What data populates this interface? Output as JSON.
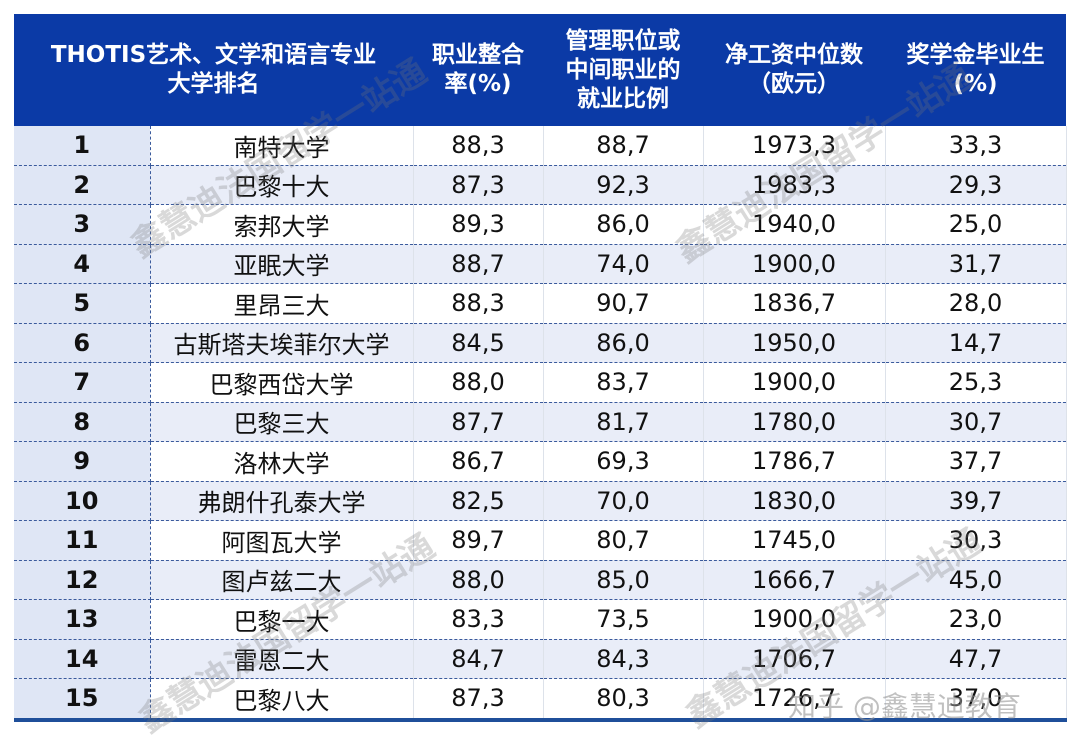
{
  "table": {
    "headers": [
      "THOTIS艺术、文学和语言专业\n大学排名",
      "职业整合\n率(%)",
      "管理职位或\n中间职业的\n就业比例",
      "净工资中位数\n（欧元）",
      "奖学金毕业生\n(%)"
    ],
    "rows": [
      {
        "rank": "1",
        "name": "南特大学",
        "integration": "88,3",
        "management": "88,7",
        "salary": "1973,3",
        "scholarship": "33,3"
      },
      {
        "rank": "2",
        "name": "巴黎十大",
        "integration": "87,3",
        "management": "92,3",
        "salary": "1983,3",
        "scholarship": "29,3"
      },
      {
        "rank": "3",
        "name": "索邦大学",
        "integration": "89,3",
        "management": "86,0",
        "salary": "1940,0",
        "scholarship": "25,0"
      },
      {
        "rank": "4",
        "name": "亚眠大学",
        "integration": "88,7",
        "management": "74,0",
        "salary": "1900,0",
        "scholarship": "31,7"
      },
      {
        "rank": "5",
        "name": "里昂三大",
        "integration": "88,3",
        "management": "90,7",
        "salary": "1836,7",
        "scholarship": "28,0"
      },
      {
        "rank": "6",
        "name": "古斯塔夫埃菲尔大学",
        "integration": "84,5",
        "management": "86,0",
        "salary": "1950,0",
        "scholarship": "14,7"
      },
      {
        "rank": "7",
        "name": "巴黎西岱大学",
        "integration": "88,0",
        "management": "83,7",
        "salary": "1900,0",
        "scholarship": "25,3"
      },
      {
        "rank": "8",
        "name": "巴黎三大",
        "integration": "87,7",
        "management": "81,7",
        "salary": "1780,0",
        "scholarship": "30,7"
      },
      {
        "rank": "9",
        "name": "洛林大学",
        "integration": "86,7",
        "management": "69,3",
        "salary": "1786,7",
        "scholarship": "37,7"
      },
      {
        "rank": "10",
        "name": "弗朗什孔泰大学",
        "integration": "82,5",
        "management": "70,0",
        "salary": "1830,0",
        "scholarship": "39,7"
      },
      {
        "rank": "11",
        "name": "阿图瓦大学",
        "integration": "89,7",
        "management": "80,7",
        "salary": "1745,0",
        "scholarship": "30,3"
      },
      {
        "rank": "12",
        "name": "图卢兹二大",
        "integration": "88,0",
        "management": "85,0",
        "salary": "1666,7",
        "scholarship": "45,0"
      },
      {
        "rank": "13",
        "name": "巴黎一大",
        "integration": "83,3",
        "management": "73,5",
        "salary": "1900,0",
        "scholarship": "23,0"
      },
      {
        "rank": "14",
        "name": "雷恩二大",
        "integration": "84,7",
        "management": "84,3",
        "salary": "1706,7",
        "scholarship": "47,7"
      },
      {
        "rank": "15",
        "name": "巴黎八大",
        "integration": "87,3",
        "management": "80,3",
        "salary": "1726,7",
        "scholarship": "37,0"
      }
    ]
  },
  "watermarks": {
    "text": "鑫慧迪法国留学一站通",
    "credit": "知乎 @鑫慧迪教育"
  },
  "colors": {
    "header_bg": "#0b3aa6",
    "header_text": "#ffffff",
    "row_alt_bg": "#e9edf8",
    "rank_bg": "#dfe6f5",
    "dashed_border": "#3a5a9c",
    "bottom_border": "#1f4f9a"
  }
}
